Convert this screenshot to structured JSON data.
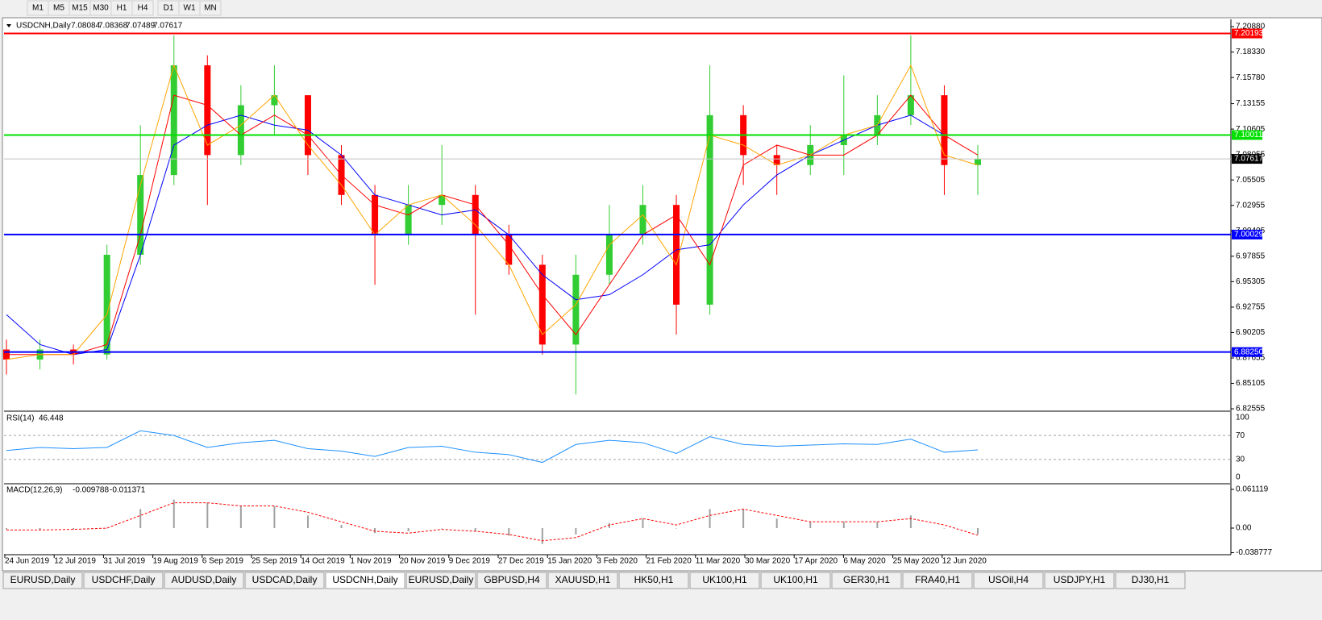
{
  "toolbar": {
    "timeframes": [
      "M1",
      "M5",
      "M15",
      "M30",
      "H1",
      "H4",
      "D1",
      "W1",
      "MN"
    ]
  },
  "chart_data": {
    "type": "candlestick",
    "title": "USDCNH,Daily",
    "header_values": [
      7.08084,
      7.08368,
      7.07489,
      7.07617
    ],
    "up_color": "#32cd32",
    "down_color": "#ff0000",
    "candles": {
      "open": [
        6.885,
        6.875,
        6.885,
        6.88,
        6.98,
        7.06,
        7.17,
        7.08,
        7.13,
        7.14,
        7.08,
        7.04,
        7.0,
        7.03,
        7.04,
        7.0,
        6.97,
        6.89,
        6.96,
        7.0,
        7.03,
        6.93,
        7.12,
        7.08,
        7.07,
        7.09,
        7.1,
        7.12,
        7.14,
        7.07
      ],
      "high": [
        6.895,
        6.895,
        6.89,
        6.99,
        7.11,
        7.2,
        7.18,
        7.15,
        7.17,
        7.14,
        7.09,
        7.05,
        7.05,
        7.09,
        7.05,
        7.01,
        6.98,
        6.98,
        7.03,
        7.05,
        7.04,
        7.17,
        7.13,
        7.09,
        7.11,
        7.16,
        7.14,
        7.2,
        7.15,
        7.09
      ],
      "low": [
        6.86,
        6.865,
        6.87,
        6.875,
        6.97,
        7.05,
        7.03,
        7.07,
        7.1,
        7.06,
        7.03,
        6.95,
        6.99,
        7.01,
        6.92,
        6.96,
        6.88,
        6.84,
        6.95,
        6.99,
        6.9,
        6.92,
        7.05,
        7.04,
        7.06,
        7.06,
        7.09,
        7.11,
        7.04,
        7.04
      ],
      "close": [
        6.875,
        6.885,
        6.88,
        6.98,
        7.06,
        7.17,
        7.08,
        7.13,
        7.14,
        7.08,
        7.04,
        7.0,
        7.03,
        7.04,
        7.0,
        6.97,
        6.89,
        6.96,
        7.0,
        7.03,
        6.93,
        7.12,
        7.08,
        7.07,
        7.09,
        7.1,
        7.12,
        7.14,
        7.07,
        7.07617
      ]
    },
    "ma": [
      {
        "color": "#0000ff",
        "values": [
          6.92,
          6.89,
          6.88,
          6.885,
          6.98,
          7.09,
          7.11,
          7.12,
          7.11,
          7.105,
          7.08,
          7.04,
          7.03,
          7.02,
          7.025,
          7.0,
          6.96,
          6.935,
          6.94,
          6.96,
          6.985,
          6.99,
          7.03,
          7.06,
          7.08,
          7.095,
          7.11,
          7.12,
          7.1,
          7.1
        ]
      },
      {
        "color": "#ff0000",
        "values": [
          6.88,
          6.88,
          6.88,
          6.89,
          7.0,
          7.14,
          7.13,
          7.1,
          7.12,
          7.1,
          7.06,
          7.03,
          7.02,
          7.04,
          7.03,
          6.99,
          6.94,
          6.9,
          6.95,
          7.0,
          7.02,
          6.97,
          7.07,
          7.09,
          7.08,
          7.08,
          7.1,
          7.14,
          7.1,
          7.08
        ]
      },
      {
        "color": "#ffa500",
        "values": [
          6.875,
          6.88,
          6.88,
          6.92,
          7.05,
          7.17,
          7.09,
          7.11,
          7.14,
          7.09,
          7.05,
          7.0,
          7.03,
          7.04,
          7.01,
          6.97,
          6.9,
          6.93,
          6.99,
          7.02,
          6.97,
          7.1,
          7.09,
          7.07,
          7.08,
          7.1,
          7.11,
          7.17,
          7.08,
          7.07
        ]
      }
    ],
    "hlines": [
      {
        "value": 7.20193,
        "label": "7.20193",
        "color": "#ff0000"
      },
      {
        "value": 7.10011,
        "label": "7.10011",
        "color": "#00e000"
      },
      {
        "value": 7.00029,
        "label": "7.00029",
        "color": "#0000ff"
      },
      {
        "value": 6.8825,
        "label": "6.88250",
        "color": "#0000ff"
      }
    ],
    "current_price": {
      "value": 7.07617,
      "label": "7.07617"
    },
    "ylim": [
      6.8248,
      7.2161
    ],
    "yticks": [
      {
        "value": 7.2088,
        "label": "7.20880"
      },
      {
        "value": 7.1833,
        "label": "7.18330"
      },
      {
        "value": 7.1578,
        "label": "7.15780"
      },
      {
        "value": 7.13155,
        "label": "7.13155"
      },
      {
        "value": 7.10605,
        "label": "7.10605"
      },
      {
        "value": 7.08055,
        "label": "7.08055"
      },
      {
        "value": 7.05505,
        "label": "7.05505"
      },
      {
        "value": 7.02955,
        "label": "7.02955"
      },
      {
        "value": 7.00405,
        "label": "7.00405"
      },
      {
        "value": 6.97855,
        "label": "6.97855"
      },
      {
        "value": 6.95305,
        "label": "6.95305"
      },
      {
        "value": 6.92755,
        "label": "6.92755"
      },
      {
        "value": 6.90205,
        "label": "6.90205"
      },
      {
        "value": 6.87655,
        "label": "6.87655"
      },
      {
        "value": 6.85105,
        "label": "6.85105"
      },
      {
        "value": 6.82555,
        "label": "6.82555"
      }
    ],
    "x_labels": [
      "24 Jun 2019",
      "12 Jul 2019",
      "31 Jul 2019",
      "19 Aug 2019",
      "6 Sep 2019",
      "25 Sep 2019",
      "14 Oct 2019",
      "1 Nov 2019",
      "20 Nov 2019",
      "9 Dec 2019",
      "27 Dec 2019",
      "15 Jan 2020",
      "3 Feb 2020",
      "21 Feb 2020",
      "11 Mar 2020",
      "30 Mar 2020",
      "17 Apr 2020",
      "6 May 2020",
      "25 May 2020",
      "12 Jun 2020"
    ],
    "rsi": {
      "label": "RSI(14)",
      "value": 46.448,
      "color": "#1e90ff",
      "ylim": [
        -8,
        108
      ],
      "yticks": [
        100,
        70,
        30,
        0
      ],
      "values": [
        45,
        50,
        48,
        50,
        78,
        70,
        50,
        58,
        62,
        48,
        44,
        35,
        50,
        52,
        42,
        38,
        25,
        55,
        62,
        58,
        40,
        68,
        55,
        52,
        54,
        56,
        55,
        64,
        42,
        46
      ]
    },
    "macd": {
      "label": "MACD(12,26,9)",
      "main": -0.009788,
      "signal_value": -0.011371,
      "ylim": [
        -0.042,
        0.0675
      ],
      "yticks": [
        0.061119,
        {
          "value": 0,
          "label": "0.00"
        },
        -0.038777
      ],
      "histogram": [
        -0.002,
        -0.003,
        -0.002,
        0.0,
        0.03,
        0.045,
        0.04,
        0.035,
        0.035,
        0.02,
        0.005,
        -0.008,
        -0.005,
        0.0,
        -0.005,
        -0.012,
        -0.025,
        -0.01,
        0.008,
        0.015,
        0.0,
        0.03,
        0.03,
        0.015,
        0.01,
        0.01,
        0.01,
        0.02,
        0.0,
        -0.009788
      ],
      "signal": [
        -0.003,
        -0.003,
        -0.002,
        0.0,
        0.02,
        0.04,
        0.04,
        0.035,
        0.035,
        0.025,
        0.01,
        -0.005,
        -0.008,
        -0.002,
        -0.005,
        -0.01,
        -0.02,
        -0.015,
        0.005,
        0.015,
        0.005,
        0.02,
        0.03,
        0.02,
        0.01,
        0.01,
        0.01,
        0.015,
        0.005,
        -0.011371
      ]
    }
  },
  "tabs": {
    "items": [
      "EURUSD,Daily",
      "USDCHF,Daily",
      "AUDUSD,Daily",
      "USDCAD,Daily",
      "USDCNH,Daily",
      "EURUSD,Daily",
      "GBPUSD,H4",
      "XAUUSD,H1",
      "HK50,H1",
      "UK100,H1",
      "UK100,H1",
      "GER30,H1",
      "FRA40,H1",
      "USOil,H4",
      "USDJPY,H1",
      "DJ30,H1"
    ],
    "active": 4
  }
}
